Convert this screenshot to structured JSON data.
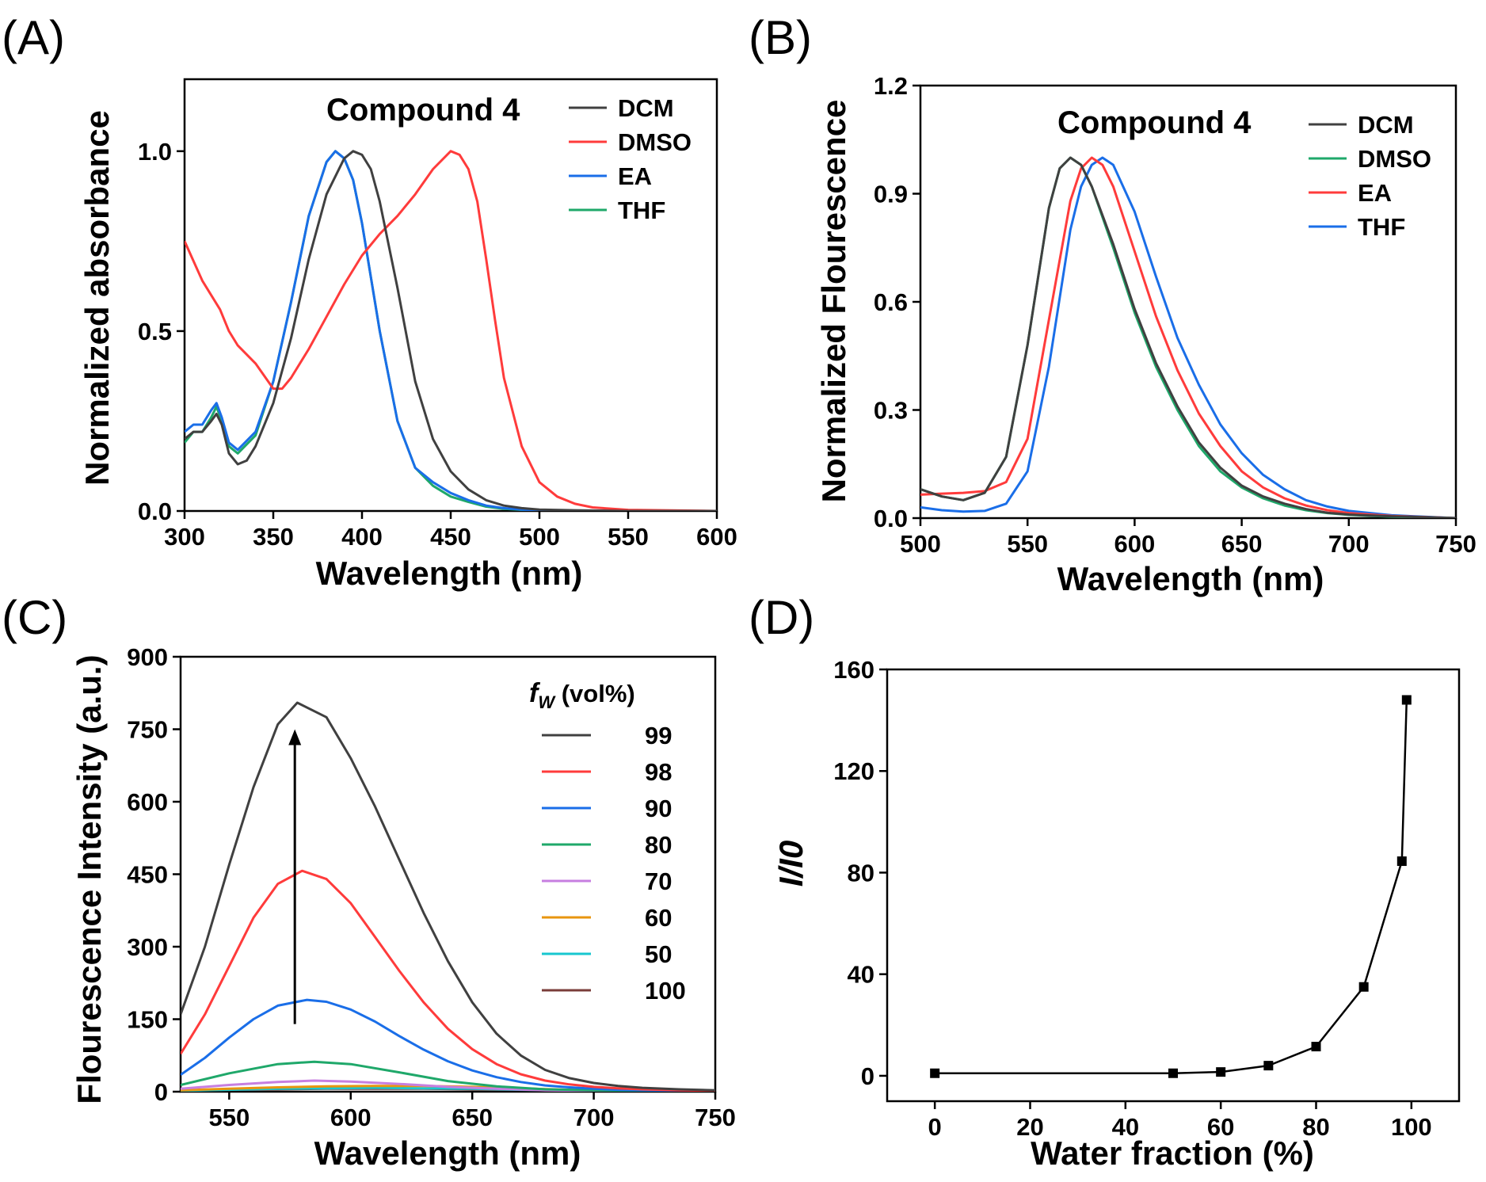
{
  "chart_data": [
    {
      "panel": "(A)",
      "type": "line",
      "title": "Compound 4",
      "xlabel": "Wavelength (nm)",
      "ylabel": "Normalized absorbance",
      "xlim": [
        300,
        600
      ],
      "ylim": [
        0,
        1.2
      ],
      "xticks": [
        "300",
        "350",
        "400",
        "450",
        "500",
        "550",
        "600"
      ],
      "xtick_values": [
        300,
        350,
        400,
        450,
        500,
        550,
        600
      ],
      "yticks": [
        "0.0",
        "0.5",
        "1.0"
      ],
      "ytick_values": [
        0,
        0.5,
        1.0
      ],
      "legend_position": "top-right",
      "series": [
        {
          "name": "DCM",
          "color": "#404040",
          "x": [
            300,
            305,
            310,
            315,
            318,
            321,
            325,
            330,
            335,
            340,
            350,
            360,
            370,
            380,
            390,
            395,
            400,
            405,
            410,
            420,
            430,
            440,
            450,
            460,
            470,
            480,
            490,
            500,
            520,
            550,
            600
          ],
          "y": [
            0.2,
            0.22,
            0.22,
            0.25,
            0.27,
            0.24,
            0.16,
            0.13,
            0.14,
            0.18,
            0.3,
            0.48,
            0.7,
            0.88,
            0.98,
            1.0,
            0.99,
            0.95,
            0.86,
            0.62,
            0.36,
            0.2,
            0.11,
            0.06,
            0.03,
            0.015,
            0.008,
            0.004,
            0.002,
            0.0,
            0.0
          ]
        },
        {
          "name": "DMSO",
          "color": "#ff3b3b",
          "x": [
            300,
            310,
            320,
            325,
            330,
            340,
            350,
            355,
            360,
            370,
            380,
            390,
            400,
            410,
            420,
            430,
            440,
            450,
            455,
            460,
            465,
            470,
            475,
            480,
            490,
            500,
            510,
            520,
            530,
            550,
            600
          ],
          "y": [
            0.75,
            0.64,
            0.56,
            0.5,
            0.46,
            0.41,
            0.34,
            0.34,
            0.37,
            0.45,
            0.54,
            0.63,
            0.71,
            0.77,
            0.82,
            0.88,
            0.95,
            1.0,
            0.99,
            0.95,
            0.86,
            0.7,
            0.53,
            0.37,
            0.18,
            0.08,
            0.04,
            0.02,
            0.01,
            0.003,
            0.0
          ]
        },
        {
          "name": "EA",
          "color": "#1a6ee8",
          "x": [
            300,
            305,
            310,
            315,
            318,
            321,
            325,
            330,
            340,
            350,
            360,
            370,
            380,
            385,
            390,
            395,
            400,
            410,
            420,
            430,
            440,
            450,
            460,
            470,
            480,
            490,
            500,
            520,
            550,
            600
          ],
          "y": [
            0.22,
            0.24,
            0.24,
            0.28,
            0.3,
            0.26,
            0.19,
            0.17,
            0.22,
            0.36,
            0.58,
            0.82,
            0.97,
            1.0,
            0.98,
            0.92,
            0.8,
            0.5,
            0.25,
            0.12,
            0.08,
            0.05,
            0.03,
            0.015,
            0.008,
            0.004,
            0.002,
            0.001,
            0.0,
            0.0
          ]
        },
        {
          "name": "THF",
          "color": "#1fa86a",
          "x": [
            300,
            305,
            310,
            315,
            318,
            321,
            325,
            330,
            340,
            350,
            360,
            370,
            380,
            385,
            390,
            395,
            400,
            410,
            420,
            430,
            440,
            450,
            460,
            470,
            480,
            490,
            500,
            520,
            550,
            600
          ],
          "y": [
            0.19,
            0.22,
            0.22,
            0.26,
            0.29,
            0.25,
            0.18,
            0.16,
            0.21,
            0.36,
            0.58,
            0.82,
            0.97,
            1.0,
            0.98,
            0.92,
            0.8,
            0.5,
            0.25,
            0.12,
            0.07,
            0.04,
            0.025,
            0.012,
            0.006,
            0.003,
            0.001,
            0.0,
            0.0,
            0.0
          ]
        }
      ]
    },
    {
      "panel": "(B)",
      "type": "line",
      "title": "Compound 4",
      "xlabel": "Wavelength (nm)",
      "ylabel": "Normalized Flourescence",
      "xlim": [
        500,
        750
      ],
      "ylim": [
        0,
        1.2
      ],
      "xticks": [
        "500",
        "550",
        "600",
        "650",
        "700",
        "750"
      ],
      "xtick_values": [
        500,
        550,
        600,
        650,
        700,
        750
      ],
      "yticks": [
        "0.0",
        "0.3",
        "0.6",
        "0.9",
        "1.2"
      ],
      "ytick_values": [
        0,
        0.3,
        0.6,
        0.9,
        1.2
      ],
      "legend_position": "top-right",
      "series": [
        {
          "name": "DCM",
          "color": "#404040",
          "x": [
            500,
            510,
            520,
            530,
            540,
            550,
            560,
            565,
            570,
            575,
            580,
            590,
            600,
            610,
            620,
            630,
            640,
            650,
            660,
            670,
            680,
            690,
            700,
            720,
            750
          ],
          "y": [
            0.08,
            0.06,
            0.05,
            0.07,
            0.17,
            0.48,
            0.86,
            0.97,
            1.0,
            0.98,
            0.92,
            0.76,
            0.58,
            0.43,
            0.31,
            0.21,
            0.14,
            0.09,
            0.06,
            0.04,
            0.025,
            0.015,
            0.01,
            0.005,
            0.0
          ]
        },
        {
          "name": "DMSO",
          "color": "#1fa86a",
          "x": [
            500,
            510,
            520,
            530,
            540,
            550,
            560,
            565,
            570,
            575,
            580,
            590,
            600,
            610,
            620,
            630,
            640,
            650,
            660,
            670,
            680,
            690,
            700,
            720,
            750
          ],
          "y": [
            0.08,
            0.06,
            0.05,
            0.07,
            0.17,
            0.48,
            0.86,
            0.97,
            1.0,
            0.98,
            0.92,
            0.75,
            0.57,
            0.42,
            0.3,
            0.2,
            0.13,
            0.085,
            0.055,
            0.035,
            0.022,
            0.014,
            0.009,
            0.004,
            0.0
          ]
        },
        {
          "name": "EA",
          "color": "#ff3b3b",
          "x": [
            500,
            510,
            520,
            530,
            540,
            550,
            560,
            570,
            575,
            580,
            585,
            590,
            600,
            610,
            620,
            630,
            640,
            650,
            660,
            670,
            680,
            690,
            700,
            720,
            750
          ],
          "y": [
            0.065,
            0.068,
            0.07,
            0.075,
            0.1,
            0.22,
            0.55,
            0.88,
            0.97,
            1.0,
            0.98,
            0.92,
            0.74,
            0.56,
            0.41,
            0.29,
            0.2,
            0.13,
            0.085,
            0.055,
            0.035,
            0.022,
            0.014,
            0.006,
            0.0
          ]
        },
        {
          "name": "THF",
          "color": "#1a6ee8",
          "x": [
            500,
            510,
            520,
            530,
            540,
            550,
            560,
            570,
            575,
            580,
            585,
            590,
            600,
            610,
            620,
            630,
            640,
            650,
            660,
            670,
            680,
            690,
            700,
            720,
            750
          ],
          "y": [
            0.03,
            0.022,
            0.018,
            0.02,
            0.04,
            0.13,
            0.42,
            0.8,
            0.92,
            0.98,
            1.0,
            0.98,
            0.85,
            0.67,
            0.5,
            0.37,
            0.26,
            0.18,
            0.12,
            0.08,
            0.05,
            0.032,
            0.02,
            0.008,
            0.0
          ]
        }
      ]
    },
    {
      "panel": "(C)",
      "type": "line",
      "title": "",
      "xlabel": "Wavelength (nm)",
      "ylabel": "Flourescence Intensity (a.u.)",
      "xlim": [
        530,
        750
      ],
      "ylim": [
        0,
        900
      ],
      "xticks": [
        "550",
        "600",
        "650",
        "700",
        "750"
      ],
      "xtick_values": [
        550,
        600,
        650,
        700,
        750
      ],
      "yticks": [
        "0",
        "150",
        "300",
        "450",
        "600",
        "750",
        "900"
      ],
      "ytick_values": [
        0,
        150,
        300,
        450,
        600,
        750,
        900
      ],
      "legend_title_main": "f",
      "legend_title_sub": "W",
      "legend_title_rest": " (vol%)",
      "legend_position": "top-right",
      "annotation": "upward arrow at peak (~577 nm) from 140 to 750",
      "arrow": {
        "x": 577,
        "y_from": 140,
        "y_to": 750
      },
      "series": [
        {
          "name": "99",
          "color": "#404040",
          "x": [
            530,
            540,
            550,
            560,
            570,
            578,
            590,
            600,
            610,
            620,
            630,
            640,
            650,
            660,
            670,
            680,
            690,
            700,
            710,
            720,
            735,
            750
          ],
          "y": [
            160,
            300,
            470,
            630,
            760,
            805,
            775,
            690,
            590,
            480,
            370,
            270,
            185,
            120,
            75,
            45,
            28,
            18,
            12,
            8,
            5,
            3
          ]
        },
        {
          "name": "98",
          "color": "#ff3b3b",
          "x": [
            530,
            540,
            550,
            560,
            570,
            580,
            590,
            600,
            610,
            620,
            630,
            640,
            650,
            660,
            670,
            680,
            690,
            700,
            710,
            720,
            735,
            750
          ],
          "y": [
            78,
            160,
            260,
            360,
            430,
            457,
            440,
            390,
            320,
            250,
            185,
            130,
            88,
            57,
            36,
            23,
            15,
            10,
            7,
            5,
            3,
            2
          ]
        },
        {
          "name": "90",
          "color": "#1a6ee8",
          "x": [
            530,
            540,
            550,
            560,
            570,
            582,
            590,
            600,
            610,
            620,
            630,
            640,
            650,
            660,
            670,
            680,
            690,
            700,
            710,
            720,
            735,
            750
          ],
          "y": [
            35,
            70,
            112,
            150,
            178,
            190,
            186,
            170,
            145,
            115,
            87,
            63,
            44,
            30,
            20,
            13,
            9,
            6,
            4,
            3,
            2,
            1
          ]
        },
        {
          "name": "80",
          "color": "#1fa86a",
          "x": [
            530,
            550,
            570,
            585,
            600,
            620,
            640,
            660,
            680,
            700,
            720,
            750
          ],
          "y": [
            14,
            38,
            57,
            62,
            57,
            40,
            22,
            11,
            5,
            3,
            2,
            1
          ]
        },
        {
          "name": "70",
          "color": "#c77fe0",
          "x": [
            530,
            550,
            570,
            585,
            600,
            620,
            640,
            660,
            680,
            700,
            720,
            750
          ],
          "y": [
            6,
            14,
            20,
            23,
            21,
            16,
            10,
            6,
            3,
            2,
            1,
            0
          ]
        },
        {
          "name": "60",
          "color": "#e8960f",
          "x": [
            530,
            550,
            570,
            590,
            610,
            630,
            650,
            670,
            690,
            710,
            730,
            750
          ],
          "y": [
            3,
            6,
            9,
            11,
            12,
            12,
            10,
            7,
            4,
            2,
            1,
            0
          ]
        },
        {
          "name": "50",
          "color": "#17c7cf",
          "x": [
            530,
            550,
            570,
            590,
            610,
            630,
            650,
            670,
            690,
            710,
            730,
            750
          ],
          "y": [
            2,
            4,
            6,
            7,
            8,
            7,
            6,
            4,
            3,
            2,
            1,
            0
          ]
        },
        {
          "name": "100",
          "color": "#7a3d3a",
          "x": [
            530,
            550,
            570,
            590,
            610,
            630,
            650,
            670,
            690,
            710,
            730,
            750
          ],
          "y": [
            2,
            4,
            5,
            6,
            6,
            6,
            5,
            4,
            2,
            1,
            1,
            0
          ]
        }
      ]
    },
    {
      "panel": "(D)",
      "type": "line",
      "title": "",
      "xlabel": "Water fraction (%)",
      "ylabel": "I/I0",
      "xlim": [
        -10,
        110
      ],
      "ylim": [
        -10,
        160
      ],
      "xticks": [
        "0",
        "20",
        "40",
        "60",
        "80",
        "100"
      ],
      "xtick_values": [
        0,
        20,
        40,
        60,
        80,
        100
      ],
      "yticks": [
        "0",
        "40",
        "80",
        "120",
        "160"
      ],
      "ytick_values": [
        0,
        40,
        80,
        120,
        160
      ],
      "markers": "square",
      "series": [
        {
          "name": "I/I0",
          "color": "#000000",
          "x": [
            0,
            50,
            60,
            70,
            80,
            90,
            98,
            99
          ],
          "y": [
            1,
            1,
            1.5,
            4,
            11.5,
            35,
            84.5,
            148
          ]
        }
      ]
    }
  ]
}
